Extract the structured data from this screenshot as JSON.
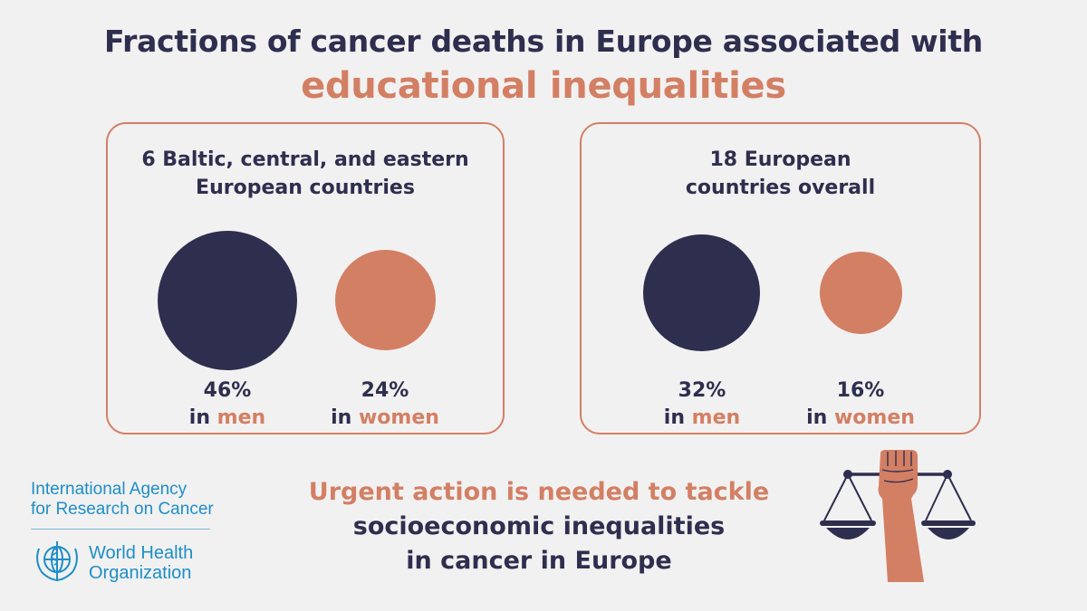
{
  "title": {
    "line1": "Fractions of cancer deaths in Europe associated with",
    "line2": "educational inequalities"
  },
  "panels": [
    {
      "title_line1": "6 Baltic, central, and eastern",
      "title_line2": "European countries",
      "stats": [
        {
          "value": "46%",
          "prefix": "in",
          "group": "men",
          "fraction": 0.46,
          "color": "#2e2e4f"
        },
        {
          "value": "24%",
          "prefix": "in",
          "group": "women",
          "fraction": 0.24,
          "color": "#d37f64"
        }
      ]
    },
    {
      "title_line1": "18 European",
      "title_line2": "countries overall",
      "stats": [
        {
          "value": "32%",
          "prefix": "in",
          "group": "men",
          "fraction": 0.32,
          "color": "#2e2e4f"
        },
        {
          "value": "16%",
          "prefix": "in",
          "group": "women",
          "fraction": 0.16,
          "color": "#d37f64"
        }
      ]
    }
  ],
  "call_to_action": {
    "line1": "Urgent action is needed to tackle",
    "line2": "socioeconomic inequalities",
    "line3": "in cancer in Europe"
  },
  "logos": {
    "iarc_line1": "International Agency",
    "iarc_line2": "for Research on Cancer",
    "who_line1": "World Health",
    "who_line2": "Organization"
  },
  "colors": {
    "navy": "#2e2e4f",
    "coral": "#d37f64",
    "background": "#f2f1f1",
    "logo_blue": "#1d8ec9"
  },
  "icons": [
    "scales-of-justice-icon",
    "raised-fist-icon",
    "who-emblem-icon"
  ]
}
